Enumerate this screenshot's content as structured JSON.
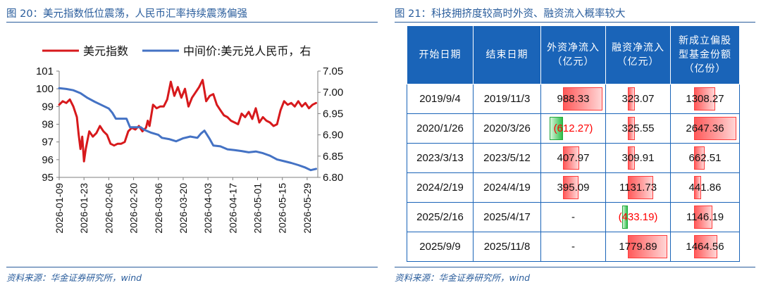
{
  "left_panel": {
    "title": "图 20：美元指数低位震荡，人民币汇率持续震荡偏强",
    "source": "资料来源：华金证券研究所，wind"
  },
  "right_panel": {
    "title": "图 21：科技拥挤度较高时外资、融资流入概率较大",
    "source": "资料来源：华金证券研究所，wind"
  },
  "colors": {
    "dxy": "#d7191c",
    "cny": "#4472c4",
    "header_bg": "#1a64b8",
    "accent_text": "#2a5d9c",
    "pos_bar": "#ff5a5a",
    "neg_bar": "#2fbf4a"
  },
  "chart_data": {
    "type": "line",
    "legend": [
      "美元指数",
      "中间价:美元兑人民币，右"
    ],
    "x_tick_labels": [
      "2026-01-09",
      "2026-01-23",
      "2026-02-06",
      "2026-02-20",
      "2026-03-06",
      "2026-03-20",
      "2026-04-03",
      "2026-04-17",
      "2026-05-01",
      "2026-05-15",
      "2026-05-29"
    ],
    "left_axis": {
      "ylim": [
        95,
        101
      ],
      "ticks": [
        95,
        96,
        97,
        98,
        99,
        100,
        101
      ]
    },
    "right_axis": {
      "ylim": [
        6.8,
        7.05
      ],
      "ticks": [
        "6.80",
        "6.85",
        "6.90",
        "6.95",
        "7.00",
        "7.05"
      ]
    },
    "series": [
      {
        "name": "美元指数",
        "axis": "left",
        "points": [
          [
            "2026-01-09",
            99.1
          ],
          [
            "2026-01-11",
            99.3
          ],
          [
            "2026-01-13",
            99.2
          ],
          [
            "2026-01-15",
            99.4
          ],
          [
            "2026-01-17",
            99.0
          ],
          [
            "2026-01-19",
            98.4
          ],
          [
            "2026-01-20",
            97.4
          ],
          [
            "2026-01-21",
            96.6
          ],
          [
            "2026-01-22",
            97.3
          ],
          [
            "2026-01-23",
            95.9
          ],
          [
            "2026-01-24",
            96.6
          ],
          [
            "2026-01-26",
            97.6
          ],
          [
            "2026-01-28",
            97.3
          ],
          [
            "2026-01-30",
            97.5
          ],
          [
            "2026-02-01",
            97.9
          ],
          [
            "2026-02-03",
            97.6
          ],
          [
            "2026-02-05",
            97.4
          ],
          [
            "2026-02-07",
            96.9
          ],
          [
            "2026-02-09",
            96.8
          ],
          [
            "2026-02-11",
            96.9
          ],
          [
            "2026-02-13",
            96.9
          ],
          [
            "2026-02-15",
            97.0
          ],
          [
            "2026-02-17",
            97.6
          ],
          [
            "2026-02-19",
            97.8
          ],
          [
            "2026-02-21",
            97.7
          ],
          [
            "2026-02-23",
            97.9
          ],
          [
            "2026-02-25",
            97.6
          ],
          [
            "2026-02-27",
            97.8
          ],
          [
            "2026-02-28",
            98.2
          ],
          [
            "2026-03-01",
            97.9
          ],
          [
            "2026-03-03",
            99.1
          ],
          [
            "2026-03-05",
            98.9
          ],
          [
            "2026-03-07",
            99.0
          ],
          [
            "2026-03-09",
            99.0
          ],
          [
            "2026-03-11",
            99.4
          ],
          [
            "2026-03-13",
            100.4
          ],
          [
            "2026-03-15",
            99.6
          ],
          [
            "2026-03-17",
            100.1
          ],
          [
            "2026-03-19",
            99.5
          ],
          [
            "2026-03-21",
            100.0
          ],
          [
            "2026-03-23",
            99.0
          ],
          [
            "2026-03-25",
            99.5
          ],
          [
            "2026-03-27",
            99.8
          ],
          [
            "2026-03-29",
            100.1
          ],
          [
            "2026-03-31",
            100.5
          ],
          [
            "2026-04-02",
            99.3
          ],
          [
            "2026-04-04",
            99.6
          ],
          [
            "2026-04-06",
            99.7
          ],
          [
            "2026-04-08",
            99.1
          ],
          [
            "2026-04-10",
            98.8
          ],
          [
            "2026-04-12",
            98.5
          ],
          [
            "2026-04-14",
            98.4
          ],
          [
            "2026-04-16",
            98.2
          ],
          [
            "2026-04-18",
            98.1
          ],
          [
            "2026-04-20",
            98.0
          ],
          [
            "2026-04-22",
            98.6
          ],
          [
            "2026-04-24",
            98.4
          ],
          [
            "2026-04-26",
            98.7
          ],
          [
            "2026-04-28",
            98.3
          ],
          [
            "2026-04-30",
            98.9
          ],
          [
            "2026-05-02",
            98.1
          ],
          [
            "2026-05-04",
            98.4
          ],
          [
            "2026-05-06",
            98.2
          ],
          [
            "2026-05-08",
            98.1
          ],
          [
            "2026-05-10",
            97.9
          ],
          [
            "2026-05-12",
            98.0
          ],
          [
            "2026-05-14",
            98.8
          ],
          [
            "2026-05-16",
            99.3
          ],
          [
            "2026-05-18",
            99.1
          ],
          [
            "2026-05-20",
            99.2
          ],
          [
            "2026-05-22",
            99.0
          ],
          [
            "2026-05-24",
            99.3
          ],
          [
            "2026-05-26",
            99.0
          ],
          [
            "2026-05-28",
            99.2
          ],
          [
            "2026-05-30",
            98.9
          ],
          [
            "2026-06-01",
            99.1
          ],
          [
            "2026-06-03",
            99.2
          ]
        ]
      },
      {
        "name": "中间价:美元兑人民币，右",
        "axis": "right",
        "points": [
          [
            "2026-01-09",
            7.01
          ],
          [
            "2026-01-13",
            7.008
          ],
          [
            "2026-01-17",
            7.005
          ],
          [
            "2026-01-21",
            6.998
          ],
          [
            "2026-01-25",
            6.987
          ],
          [
            "2026-01-29",
            6.978
          ],
          [
            "2026-02-02",
            6.97
          ],
          [
            "2026-02-06",
            6.962
          ],
          [
            "2026-02-08",
            6.952
          ],
          [
            "2026-02-10",
            6.938
          ],
          [
            "2026-02-12",
            6.938
          ],
          [
            "2026-02-16",
            6.938
          ],
          [
            "2026-02-18",
            6.918
          ],
          [
            "2026-02-20",
            6.918
          ],
          [
            "2026-02-24",
            6.918
          ],
          [
            "2026-02-26",
            6.912
          ],
          [
            "2026-03-02",
            6.905
          ],
          [
            "2026-03-06",
            6.9
          ],
          [
            "2026-03-08",
            6.893
          ],
          [
            "2026-03-12",
            6.89
          ],
          [
            "2026-03-16",
            6.885
          ],
          [
            "2026-03-20",
            6.892
          ],
          [
            "2026-03-24",
            6.896
          ],
          [
            "2026-03-28",
            6.893
          ],
          [
            "2026-03-30",
            6.903
          ],
          [
            "2026-04-01",
            6.91
          ],
          [
            "2026-04-04",
            6.89
          ],
          [
            "2026-04-06",
            6.875
          ],
          [
            "2026-04-10",
            6.873
          ],
          [
            "2026-04-14",
            6.866
          ],
          [
            "2026-04-18",
            6.864
          ],
          [
            "2026-04-22",
            6.862
          ],
          [
            "2026-04-26",
            6.859
          ],
          [
            "2026-04-30",
            6.861
          ],
          [
            "2026-05-04",
            6.857
          ],
          [
            "2026-05-08",
            6.851
          ],
          [
            "2026-05-12",
            6.842
          ],
          [
            "2026-05-16",
            6.838
          ],
          [
            "2026-05-20",
            6.834
          ],
          [
            "2026-05-24",
            6.829
          ],
          [
            "2026-05-28",
            6.823
          ],
          [
            "2026-05-31",
            6.817
          ],
          [
            "2026-06-03",
            6.82
          ]
        ]
      }
    ]
  },
  "table": {
    "headers": [
      "开始日期",
      "结束日期",
      "外资净流入（亿元）",
      "融资净流入（亿元）",
      "新成立偏股型基金份额（亿份）"
    ],
    "rows": [
      {
        "start": "2019/9/4",
        "end": "2019/11/3",
        "foreign": "988.33",
        "foreign_value": 988.33,
        "margin": "323.07",
        "margin_value": 323.07,
        "fund": "1308.27",
        "fund_value": 1308.27
      },
      {
        "start": "2020/1/26",
        "end": "2020/3/26",
        "foreign": "(612.27)",
        "foreign_value": -612.27,
        "margin": "325.55",
        "margin_value": 325.55,
        "fund": "2647.36",
        "fund_value": 2647.36
      },
      {
        "start": "2023/3/13",
        "end": "2023/5/12",
        "foreign": "407.97",
        "foreign_value": 407.97,
        "margin": "309.91",
        "margin_value": 309.91,
        "fund": "662.51",
        "fund_value": 662.51
      },
      {
        "start": "2024/2/19",
        "end": "2024/4/19",
        "foreign": "395.09",
        "foreign_value": 395.09,
        "margin": "1131.73",
        "margin_value": 1131.73,
        "fund": "441.86",
        "fund_value": 441.86
      },
      {
        "start": "2025/2/16",
        "end": "2025/4/17",
        "foreign": "-",
        "foreign_value": null,
        "margin": "(433.19)",
        "margin_value": -433.19,
        "fund": "1146.19",
        "fund_value": 1146.19
      },
      {
        "start": "2025/9/9",
        "end": "2025/11/8",
        "foreign": "-",
        "foreign_value": null,
        "margin": "1779.89",
        "margin_value": 1779.89,
        "fund": "1464.56",
        "fund_value": 1464.56
      }
    ]
  }
}
